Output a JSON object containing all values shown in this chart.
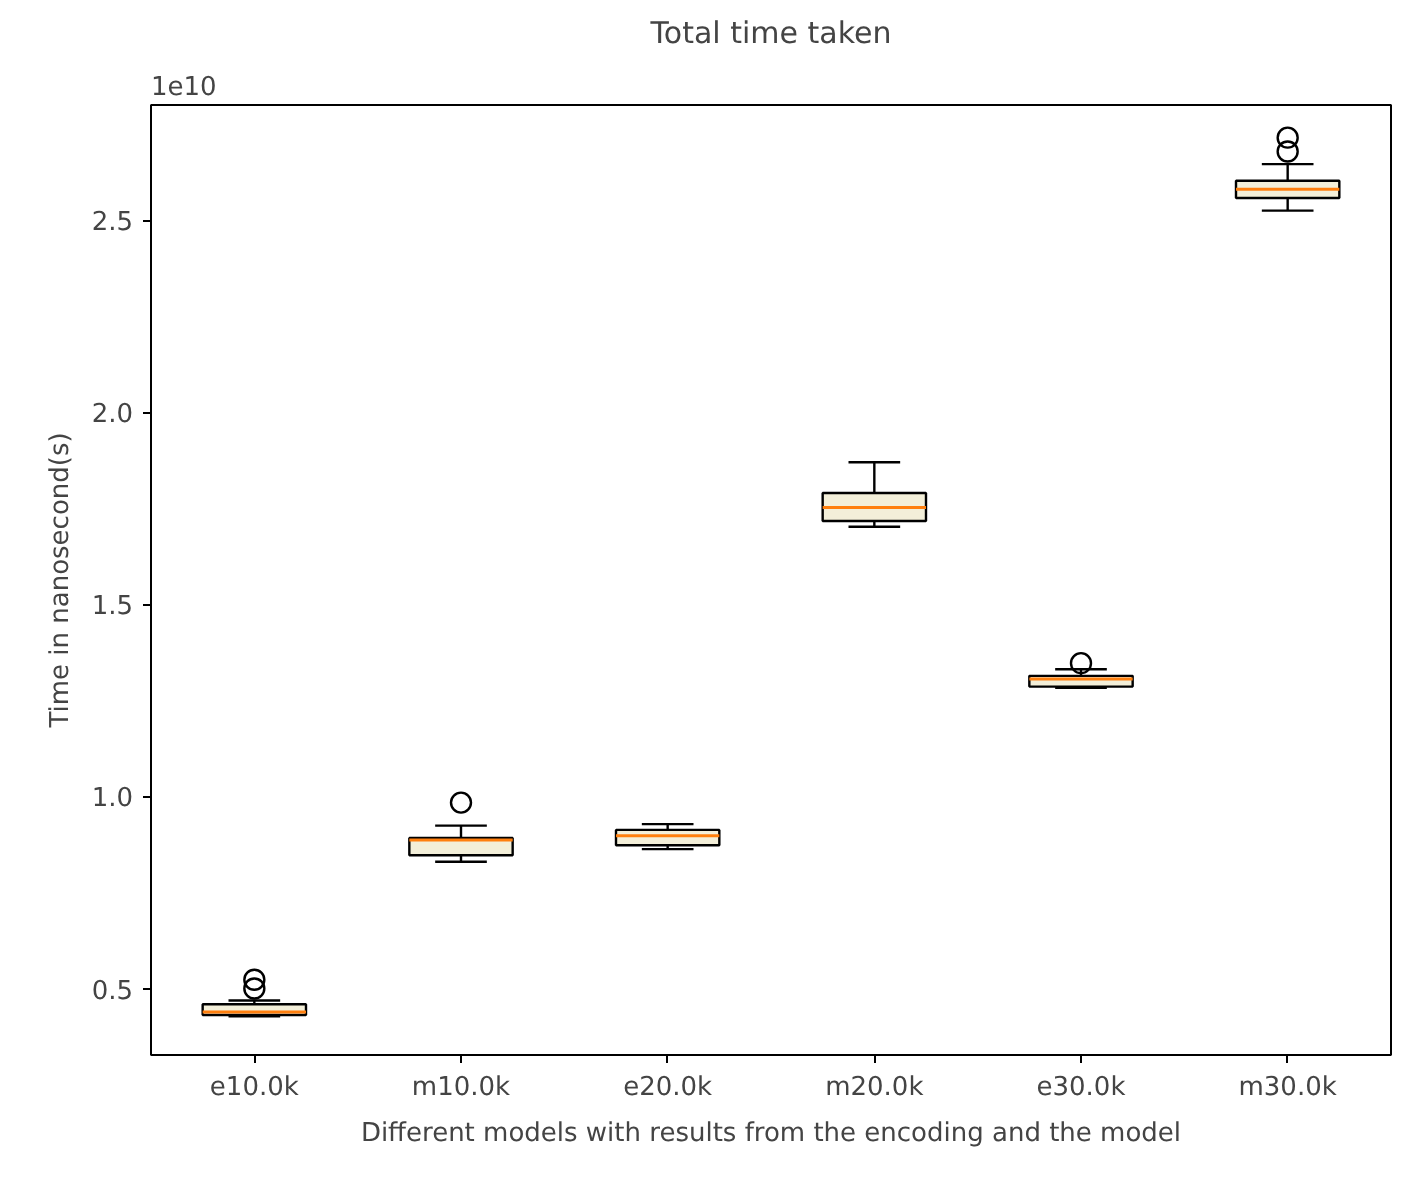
{
  "chart_data": {
    "type": "box",
    "title": "Total time taken",
    "xlabel": "Different models with results from the encoding and the model",
    "ylabel": "Time in nanosecond(s)",
    "annotations": [
      "1e10"
    ],
    "categories": [
      "e10.0k",
      "m10.0k",
      "e20.0k",
      "m20.0k",
      "e30.0k",
      "m30.0k"
    ],
    "ylim": [
      0.327,
      2.8
    ],
    "yticks": [
      {
        "value": 0.5,
        "label": "0.5"
      },
      {
        "value": 1.0,
        "label": "1.0"
      },
      {
        "value": 1.5,
        "label": "1.5"
      },
      {
        "value": 2.0,
        "label": "2.0"
      },
      {
        "value": 2.5,
        "label": "2.5"
      }
    ],
    "grid": false,
    "series": [
      {
        "color": "#f3efd9",
        "boxes": [
          {
            "low": 0.428,
            "q1": 0.431,
            "median": 0.439,
            "q3": 0.459,
            "high": 0.469,
            "outliers": [
              0.523,
              0.5
            ]
          },
          {
            "low": 0.83,
            "q1": 0.847,
            "median": 0.887,
            "q3": 0.892,
            "high": 0.924,
            "outliers": [
              0.984
            ]
          },
          {
            "low": 0.863,
            "q1": 0.873,
            "median": 0.898,
            "q3": 0.913,
            "high": 0.928
          },
          {
            "low": 1.702,
            "q1": 1.717,
            "median": 1.752,
            "q3": 1.79,
            "high": 1.87
          },
          {
            "low": 1.283,
            "q1": 1.286,
            "median": 1.306,
            "q3": 1.314,
            "high": 1.331,
            "outliers": [
              1.347
            ]
          },
          {
            "low": 2.525,
            "q1": 2.558,
            "median": 2.581,
            "q3": 2.603,
            "high": 2.646,
            "outliers": [
              2.715,
              2.679
            ]
          }
        ]
      }
    ]
  }
}
